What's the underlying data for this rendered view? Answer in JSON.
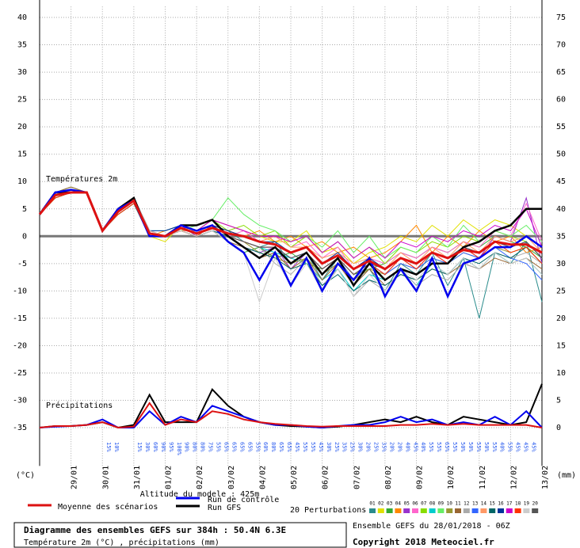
{
  "chart_data": {
    "type": "line",
    "title": "Diagramme des ensembles GEFS sur 384h : 50.4N 6.3E",
    "subtitle": "Température 2m (°C) , précipitations (mm)",
    "altitude": "Altitude du modele : 425m",
    "source": "Ensemble GEFS du 28/01/2018 - 06Z",
    "copyright": "Copyright 2018 Meteociel.fr",
    "temperature_label": "Températures 2m",
    "precipitation_label": "Précipitations",
    "perturbations_label": "20 Perturbations",
    "y_unit": "(°C)",
    "y2_unit": "(mm)",
    "grid": true,
    "xlim": [
      0,
      384
    ],
    "xticks": [
      {
        "value": 24,
        "label": "29/01"
      },
      {
        "value": 48,
        "label": "30/01"
      },
      {
        "value": 72,
        "label": "31/01"
      },
      {
        "value": 96,
        "label": "01/02"
      },
      {
        "value": 120,
        "label": "02/02"
      },
      {
        "value": 144,
        "label": "03/02"
      },
      {
        "value": 168,
        "label": "04/02"
      },
      {
        "value": 192,
        "label": "05/02"
      },
      {
        "value": 216,
        "label": "06/02"
      },
      {
        "value": 240,
        "label": "07/02"
      },
      {
        "value": 264,
        "label": "08/02"
      },
      {
        "value": 288,
        "label": "09/02"
      },
      {
        "value": 312,
        "label": "10/02"
      },
      {
        "value": 336,
        "label": "11/02"
      },
      {
        "value": 360,
        "label": "12/02"
      },
      {
        "value": 384,
        "label": "13/02"
      }
    ],
    "ylim": [
      -42,
      42
    ],
    "yticks": [
      -35,
      -30,
      -25,
      -20,
      -15,
      -10,
      -5,
      0,
      5,
      10,
      15,
      20,
      25,
      30,
      35,
      40
    ],
    "y2lim": [
      -7,
      77
    ],
    "y2ticks": [
      0,
      5,
      10,
      15,
      20,
      25,
      30,
      35,
      40,
      45,
      50,
      55,
      60,
      65,
      70,
      75
    ],
    "x": [
      0,
      12,
      24,
      36,
      48,
      60,
      72,
      84,
      96,
      108,
      120,
      132,
      144,
      156,
      168,
      180,
      192,
      204,
      216,
      228,
      240,
      252,
      264,
      276,
      288,
      300,
      312,
      324,
      336,
      348,
      360,
      372,
      384
    ],
    "precip_probabilities_early": [
      "15%",
      "10%"
    ],
    "precip_probabilities": [
      "15%",
      "30%",
      "60%",
      "90%",
      "95%",
      "100%",
      "90%",
      "80%",
      "80%",
      "75%",
      "55%",
      "65%",
      "65%",
      "65%",
      "65%",
      "55%",
      "60%",
      "80%",
      "65%",
      "65%",
      "45%",
      "55%",
      "55%",
      "45%",
      "30%",
      "25%",
      "35%",
      "25%",
      "30%",
      "20%",
      "25%",
      "35%",
      "20%",
      "20%",
      "40%",
      "45%",
      "40%",
      "55%",
      "55%",
      "65%",
      "55%",
      "50%",
      "50%",
      "55%",
      "50%",
      "55%",
      "40%",
      "55%",
      "45%",
      "45%",
      "45%"
    ],
    "series": [
      {
        "name": "01",
        "color": "#2a8c8c",
        "values": [
          4,
          8,
          8,
          8,
          1,
          5,
          7,
          1,
          0,
          1,
          0,
          2,
          1,
          -1,
          -2,
          -1,
          -5,
          -3,
          -8,
          -4,
          -9,
          -6,
          -10,
          -5,
          -7,
          -3,
          -9,
          -4,
          -15,
          -3,
          -5,
          -1,
          -12
        ]
      },
      {
        "name": "02",
        "color": "#e0e000",
        "values": [
          4,
          7,
          8,
          8,
          1,
          4,
          6,
          0,
          -1,
          2,
          1,
          3,
          2,
          1,
          0,
          -1,
          -1,
          1,
          -3,
          -2,
          -5,
          -3,
          -2,
          0,
          -1,
          2,
          0,
          3,
          1,
          3,
          2,
          0,
          -2
        ]
      },
      {
        "name": "03",
        "color": "#33aa33",
        "values": [
          4,
          8,
          9,
          8,
          1,
          5,
          7,
          1,
          0,
          1,
          0,
          1,
          -1,
          -3,
          -2,
          -4,
          -3,
          -5,
          -6,
          -4,
          -7,
          -6,
          -5,
          -3,
          -4,
          -2,
          -3,
          -1,
          -2,
          0,
          -1,
          -2,
          -4
        ]
      },
      {
        "name": "04",
        "color": "#ff8800",
        "values": [
          4,
          7,
          8,
          8,
          1,
          4,
          6,
          0,
          1,
          2,
          1,
          2,
          1,
          0,
          1,
          -1,
          0,
          -2,
          -1,
          -3,
          -2,
          -4,
          -3,
          -1,
          2,
          -3,
          0,
          -2,
          1,
          -1,
          0,
          -3,
          -2
        ]
      },
      {
        "name": "05",
        "color": "#9933cc",
        "values": [
          4,
          8,
          8,
          8,
          1,
          5,
          7,
          1,
          0,
          2,
          0,
          1,
          0,
          -2,
          -3,
          -2,
          -6,
          -3,
          -7,
          -5,
          -8,
          -5,
          -7,
          -4,
          -6,
          -3,
          -5,
          -2,
          -4,
          0,
          -1,
          7,
          -5
        ]
      },
      {
        "name": "06",
        "color": "#ff66cc",
        "values": [
          4,
          7,
          8,
          8,
          1,
          4,
          6,
          1,
          0,
          1,
          1,
          2,
          0,
          1,
          -1,
          0,
          -2,
          -1,
          -4,
          -2,
          -6,
          -4,
          -5,
          -3,
          -4,
          -2,
          -3,
          -1,
          -2,
          1,
          0,
          6,
          -1
        ]
      },
      {
        "name": "07",
        "color": "#88dd00",
        "values": [
          4,
          8,
          8,
          8,
          1,
          5,
          7,
          0,
          0,
          2,
          1,
          3,
          1,
          2,
          0,
          1,
          -2,
          0,
          -3,
          -1,
          -4,
          -2,
          -5,
          -2,
          -3,
          -1,
          -2,
          0,
          -1,
          1,
          0,
          -1,
          -4
        ]
      },
      {
        "name": "08",
        "color": "#00cccc",
        "values": [
          4,
          8,
          8,
          8,
          1,
          5,
          7,
          1,
          1,
          2,
          1,
          2,
          0,
          -1,
          -2,
          -3,
          -4,
          -5,
          -8,
          -6,
          -10,
          -7,
          -8,
          -6,
          -9,
          -5,
          -7,
          -4,
          -6,
          -3,
          -5,
          -4,
          -7
        ]
      },
      {
        "name": "09",
        "color": "#66ee66",
        "values": [
          4,
          7,
          8,
          8,
          1,
          4,
          6,
          0,
          0,
          1,
          2,
          3,
          7,
          4,
          2,
          1,
          -1,
          0,
          -2,
          1,
          -3,
          0,
          -4,
          -2,
          -3,
          0,
          -2,
          2,
          -1,
          1,
          0,
          2,
          -1
        ]
      },
      {
        "name": "10",
        "color": "#999933",
        "values": [
          4,
          8,
          8,
          8,
          1,
          5,
          7,
          1,
          0,
          1,
          0,
          2,
          0,
          -1,
          -3,
          -4,
          -5,
          -4,
          -7,
          -5,
          -8,
          -6,
          -7,
          -5,
          -6,
          -4,
          -5,
          -3,
          -4,
          -2,
          -3,
          -2,
          -5
        ]
      },
      {
        "name": "11",
        "color": "#996633",
        "values": [
          4,
          8,
          9,
          8,
          1,
          5,
          7,
          1,
          0,
          1,
          0,
          1,
          -1,
          -2,
          -4,
          -3,
          -6,
          -4,
          -8,
          -5,
          -9,
          -6,
          -9,
          -7,
          -8,
          -6,
          -7,
          -5,
          -6,
          -4,
          -5,
          -4,
          -6
        ]
      },
      {
        "name": "12",
        "color": "#aaaaaa",
        "values": [
          4,
          7,
          8,
          8,
          1,
          4,
          6,
          1,
          0,
          1,
          0,
          2,
          0,
          -1,
          -2,
          -5,
          -7,
          -4,
          -9,
          -6,
          -11,
          -8,
          -10,
          -6,
          -9,
          -7,
          -8,
          -5,
          -6,
          -3,
          -4,
          -3,
          -5
        ]
      },
      {
        "name": "13",
        "color": "#3366ff",
        "values": [
          4,
          8,
          8,
          8,
          1,
          5,
          7,
          0,
          0,
          2,
          1,
          2,
          0,
          -1,
          -2,
          -2,
          -4,
          -3,
          -6,
          -4,
          -8,
          -5,
          -7,
          -5,
          -6,
          -4,
          -5,
          -3,
          -4,
          -2,
          -4,
          -5,
          -8
        ]
      },
      {
        "name": "14",
        "color": "#ff9966",
        "values": [
          4,
          8,
          8,
          8,
          1,
          5,
          7,
          1,
          0,
          1,
          1,
          2,
          1,
          0,
          -1,
          0,
          -2,
          -2,
          -4,
          -3,
          -5,
          -4,
          -6,
          -3,
          -5,
          -2,
          -4,
          -1,
          -3,
          0,
          -1,
          0,
          -3
        ]
      },
      {
        "name": "15",
        "color": "#006666",
        "values": [
          4,
          7,
          8,
          8,
          1,
          4,
          6,
          0,
          0,
          1,
          0,
          1,
          0,
          -2,
          -3,
          -4,
          -6,
          -5,
          -9,
          -7,
          -10,
          -8,
          -9,
          -7,
          -8,
          -6,
          -7,
          -4,
          -5,
          -3,
          -4,
          -2,
          -5
        ]
      },
      {
        "name": "16",
        "color": "#003399",
        "values": [
          4,
          8,
          8,
          8,
          1,
          5,
          7,
          1,
          1,
          2,
          1,
          2,
          1,
          0,
          -1,
          -1,
          -3,
          -2,
          -5,
          -3,
          -6,
          -4,
          -6,
          -4,
          -5,
          -3,
          -4,
          -2,
          -3,
          -1,
          -2,
          -1,
          -4
        ]
      },
      {
        "name": "17",
        "color": "#cc00cc",
        "values": [
          4,
          8,
          8,
          8,
          1,
          5,
          7,
          0,
          0,
          2,
          1,
          3,
          2,
          1,
          0,
          0,
          -1,
          0,
          -3,
          -1,
          -4,
          -2,
          -4,
          -1,
          -2,
          0,
          -1,
          1,
          0,
          2,
          1,
          5,
          -2
        ]
      },
      {
        "name": "18",
        "color": "#ff3300",
        "values": [
          4,
          7,
          8,
          8,
          1,
          4,
          6,
          1,
          0,
          1,
          0,
          2,
          0,
          -1,
          -2,
          -2,
          -5,
          -3,
          -6,
          -4,
          -7,
          -5,
          -7,
          -4,
          -6,
          -3,
          -5,
          -2,
          -4,
          -1,
          -3,
          -2,
          -5
        ]
      },
      {
        "name": "19",
        "color": "#cccccc",
        "values": [
          4,
          8,
          8,
          8,
          1,
          5,
          7,
          1,
          0,
          1,
          0,
          1,
          -1,
          -3,
          -12,
          -4,
          -9,
          -5,
          -10,
          -6,
          -11,
          -7,
          -10,
          -6,
          -8,
          -5,
          -7,
          -4,
          -6,
          -3,
          -5,
          -4,
          -7
        ]
      },
      {
        "name": "20",
        "color": "#555555",
        "values": [
          4,
          8,
          8,
          8,
          1,
          5,
          7,
          0,
          0,
          2,
          1,
          2,
          0,
          -1,
          -2,
          -2,
          -4,
          -3,
          -6,
          -4,
          -7,
          -5,
          -6,
          -4,
          -5,
          -3,
          -4,
          -2,
          -3,
          -1,
          -2,
          -1,
          -4
        ]
      },
      {
        "color": "#000000",
        "axis": "y2",
        "values": [
          0,
          0.3,
          0.3,
          0.5,
          1,
          0,
          0.5,
          6,
          1,
          1,
          1,
          7,
          4,
          2,
          1,
          0.5,
          0.3,
          0.2,
          0,
          0.2,
          0.5,
          1,
          1.5,
          1,
          2,
          1,
          0.5,
          2,
          1.5,
          1,
          0.5,
          1,
          8
        ]
      },
      {
        "color": "#0000ee",
        "axis": "y2",
        "values": [
          0,
          0.2,
          0.3,
          0.5,
          1.5,
          0,
          0,
          3,
          0.5,
          2,
          1,
          4,
          3,
          2,
          1,
          0.5,
          0.5,
          0.2,
          0,
          0.3,
          0.5,
          0.5,
          1,
          2,
          1,
          1.5,
          0.5,
          1,
          0.5,
          2,
          0.5,
          3,
          0
        ]
      },
      {
        "color": "#dd1111",
        "axis": "y2",
        "values": [
          0,
          0.3,
          0.3,
          0.5,
          1,
          0,
          0.2,
          4.5,
          0.5,
          1.5,
          1,
          3,
          2.5,
          1.5,
          1,
          0.7,
          0.5,
          0.3,
          0.2,
          0.3,
          0.3,
          0.3,
          0.3,
          0.5,
          0.5,
          0.7,
          0.5,
          0.7,
          0.5,
          0.5,
          0.5,
          0.5,
          0
        ]
      },
      {
        "name": "Run GFS",
        "color": "#000000",
        "values": [
          4,
          8,
          8,
          8,
          1,
          5,
          7,
          0,
          0,
          2,
          2,
          3,
          0,
          -2,
          -4,
          -2,
          -5,
          -3,
          -7,
          -4,
          -9,
          -5,
          -8,
          -6,
          -7,
          -5,
          -5,
          -2,
          -1,
          1,
          2,
          5,
          5
        ]
      },
      {
        "name": "Run de contrôle",
        "color": "#0000ee",
        "values": [
          4,
          8,
          8.5,
          8,
          1,
          5,
          6.5,
          0,
          0,
          2,
          1,
          2,
          -1,
          -3,
          -8,
          -3,
          -9,
          -4,
          -10,
          -5,
          -8,
          -4,
          -11,
          -6,
          -10,
          -4,
          -11,
          -5,
          -4,
          -2,
          -2,
          0,
          -2
        ]
      },
      {
        "name": "Moyenne des scénarios",
        "color": "#dd1111",
        "values": [
          4,
          7.5,
          8,
          8,
          1,
          4.5,
          6.5,
          0.5,
          0,
          1.5,
          0.5,
          1.5,
          0.5,
          0,
          -1,
          -1.5,
          -3,
          -2,
          -5,
          -3.5,
          -6,
          -4.5,
          -6,
          -4,
          -5,
          -3,
          -4,
          -2.5,
          -3,
          -1,
          -1.5,
          -1.5,
          -3
        ]
      }
    ]
  }
}
